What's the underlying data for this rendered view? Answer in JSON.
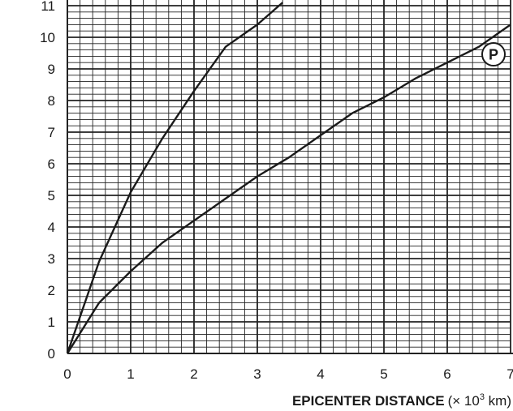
{
  "chart_data": {
    "type": "line",
    "x_label": {
      "main": "EPICENTER DISTANCE",
      "unit_prefix": "(× 10",
      "unit_exp": "3",
      "unit_suffix": " km)"
    },
    "xlim": [
      0,
      7
    ],
    "ylim": [
      0,
      11
    ],
    "x_ticks": [
      "0",
      "1",
      "2",
      "3",
      "4",
      "5",
      "6",
      "7"
    ],
    "y_ticks": [
      "0",
      "1",
      "2",
      "3",
      "4",
      "5",
      "6",
      "7",
      "8",
      "9",
      "10",
      "11"
    ],
    "grid": true,
    "minor_grid_divisions": 5,
    "series": [
      {
        "x": [
          0,
          0.5,
          1,
          1.5,
          2,
          2.5,
          3,
          3.4
        ],
        "y": [
          0,
          2.9,
          5.1,
          6.8,
          8.3,
          9.7,
          10.4,
          11.1
        ]
      },
      {
        "name": "P",
        "x": [
          0,
          0.5,
          1,
          1.5,
          2,
          2.5,
          3,
          3.5,
          4,
          4.5,
          5,
          5.5,
          6,
          6.5,
          7
        ],
        "y": [
          0,
          1.6,
          2.6,
          3.5,
          4.2,
          4.9,
          5.6,
          6.2,
          6.9,
          7.6,
          8.1,
          8.7,
          9.2,
          9.7,
          10.4
        ]
      }
    ],
    "colors": {
      "line": "#1a1a1a",
      "grid": "#222222"
    }
  }
}
